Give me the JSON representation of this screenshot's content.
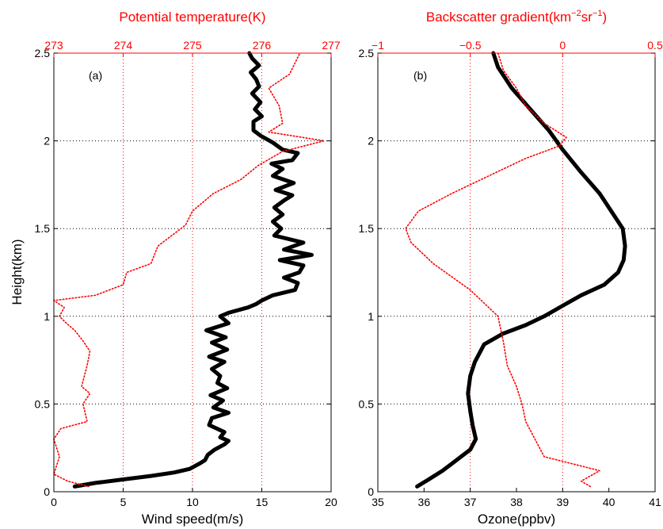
{
  "chart_data": [
    {
      "type": "line",
      "panel_label": "(a)",
      "ylabel": "Height(km)",
      "xlabel": "Wind speed(m/s)",
      "x2label": "Potential temperature(K)",
      "xlim": [
        0,
        20
      ],
      "x2lim": [
        273,
        277
      ],
      "ylim": [
        0,
        2.5
      ],
      "xticks": [
        "0",
        "5",
        "10",
        "15",
        "20"
      ],
      "x2ticks": [
        "273",
        "274",
        "275",
        "276",
        "277"
      ],
      "yticks": [
        "0",
        "0.5",
        "1",
        "1.5",
        "2",
        "2.5"
      ],
      "grid": true,
      "series": [
        {
          "axis": "bottom",
          "color": "#000000",
          "style": "solid-thick",
          "points": [
            [
              1.5,
              0.03
            ],
            [
              3.0,
              0.05
            ],
            [
              5.0,
              0.07
            ],
            [
              7.0,
              0.09
            ],
            [
              8.7,
              0.11
            ],
            [
              9.8,
              0.13
            ],
            [
              10.5,
              0.16
            ],
            [
              10.9,
              0.18
            ],
            [
              11.1,
              0.21
            ],
            [
              11.6,
              0.24
            ],
            [
              12.3,
              0.27
            ],
            [
              12.6,
              0.29
            ],
            [
              12.0,
              0.31
            ],
            [
              12.3,
              0.34
            ],
            [
              11.2,
              0.38
            ],
            [
              11.4,
              0.42
            ],
            [
              12.6,
              0.45
            ],
            [
              11.5,
              0.48
            ],
            [
              12.2,
              0.52
            ],
            [
              11.3,
              0.55
            ],
            [
              12.5,
              0.59
            ],
            [
              11.8,
              0.62
            ],
            [
              12.0,
              0.66
            ],
            [
              11.4,
              0.7
            ],
            [
              12.3,
              0.74
            ],
            [
              11.2,
              0.77
            ],
            [
              12.5,
              0.81
            ],
            [
              11.4,
              0.85
            ],
            [
              12.4,
              0.88
            ],
            [
              11.0,
              0.92
            ],
            [
              12.6,
              0.96
            ],
            [
              12.0,
              1.0
            ],
            [
              12.6,
              1.02
            ],
            [
              14.0,
              1.05
            ],
            [
              14.6,
              1.07
            ],
            [
              15.0,
              1.09
            ],
            [
              15.8,
              1.12
            ],
            [
              17.4,
              1.15
            ],
            [
              17.6,
              1.19
            ],
            [
              16.6,
              1.22
            ],
            [
              17.7,
              1.25
            ],
            [
              18.0,
              1.29
            ],
            [
              16.3,
              1.32
            ],
            [
              18.6,
              1.35
            ],
            [
              16.6,
              1.38
            ],
            [
              18.0,
              1.42
            ],
            [
              15.9,
              1.46
            ],
            [
              16.4,
              1.5
            ],
            [
              15.8,
              1.54
            ],
            [
              16.5,
              1.58
            ],
            [
              15.9,
              1.62
            ],
            [
              16.6,
              1.66
            ],
            [
              17.2,
              1.69
            ],
            [
              16.0,
              1.72
            ],
            [
              17.3,
              1.76
            ],
            [
              15.8,
              1.8
            ],
            [
              16.5,
              1.84
            ],
            [
              15.7,
              1.87
            ],
            [
              17.2,
              1.89
            ],
            [
              17.6,
              1.93
            ],
            [
              16.5,
              1.95
            ],
            [
              15.8,
              1.99
            ],
            [
              14.9,
              2.03
            ],
            [
              14.4,
              2.06
            ],
            [
              14.4,
              2.11
            ],
            [
              15.0,
              2.14
            ],
            [
              14.5,
              2.18
            ],
            [
              14.9,
              2.22
            ],
            [
              14.3,
              2.27
            ],
            [
              14.8,
              2.31
            ],
            [
              14.6,
              2.35
            ],
            [
              14.2,
              2.39
            ],
            [
              14.8,
              2.43
            ],
            [
              14.3,
              2.47
            ],
            [
              14.1,
              2.5
            ]
          ]
        },
        {
          "axis": "top",
          "color": "#ff0000",
          "style": "dotted",
          "points": [
            [
              273.5,
              0.03
            ],
            [
              273.2,
              0.06
            ],
            [
              273.0,
              0.1
            ],
            [
              273.08,
              0.2
            ],
            [
              273.0,
              0.3
            ],
            [
              273.1,
              0.36
            ],
            [
              273.48,
              0.4
            ],
            [
              273.42,
              0.5
            ],
            [
              273.52,
              0.56
            ],
            [
              273.4,
              0.6
            ],
            [
              273.48,
              0.72
            ],
            [
              273.52,
              0.8
            ],
            [
              273.42,
              0.86
            ],
            [
              273.3,
              0.92
            ],
            [
              273.18,
              0.96
            ],
            [
              273.08,
              1.0
            ],
            [
              273.15,
              1.05
            ],
            [
              273.0,
              1.09
            ],
            [
              273.6,
              1.12
            ],
            [
              274.0,
              1.18
            ],
            [
              274.05,
              1.25
            ],
            [
              274.4,
              1.3
            ],
            [
              274.5,
              1.4
            ],
            [
              274.9,
              1.52
            ],
            [
              275.0,
              1.6
            ],
            [
              275.3,
              1.7
            ],
            [
              275.7,
              1.78
            ],
            [
              275.95,
              1.86
            ],
            [
              276.3,
              1.94
            ],
            [
              276.9,
              2.0
            ],
            [
              276.1,
              2.05
            ],
            [
              276.3,
              2.1
            ],
            [
              276.25,
              2.2
            ],
            [
              276.1,
              2.3
            ],
            [
              276.4,
              2.38
            ],
            [
              276.55,
              2.5
            ]
          ]
        }
      ]
    },
    {
      "type": "line",
      "panel_label": "(b)",
      "ylabel": "",
      "xlabel": "Ozone(ppbv)",
      "x2label": "Backscatter gradient(km",
      "x2label_sup1": "−2",
      "x2label_mid": "sr",
      "x2label_sup2": "−1",
      "x2label_end": ")",
      "xlim": [
        35,
        41
      ],
      "x2lim": [
        -1,
        0.5
      ],
      "ylim": [
        0,
        2.5
      ],
      "xticks": [
        "35",
        "36",
        "37",
        "38",
        "39",
        "40",
        "41"
      ],
      "x2ticks": [
        "−1",
        "−0.5",
        "0",
        "0.5"
      ],
      "yticks": [
        "0",
        "0.5",
        "1",
        "1.5",
        "2",
        "2.5"
      ],
      "grid": true,
      "series": [
        {
          "axis": "bottom",
          "color": "#000000",
          "style": "solid-thick",
          "points": [
            [
              35.85,
              0.03
            ],
            [
              36.1,
              0.07
            ],
            [
              36.4,
              0.12
            ],
            [
              36.7,
              0.18
            ],
            [
              37.0,
              0.24
            ],
            [
              37.12,
              0.3
            ],
            [
              37.05,
              0.38
            ],
            [
              37.0,
              0.46
            ],
            [
              36.95,
              0.56
            ],
            [
              37.0,
              0.66
            ],
            [
              37.1,
              0.74
            ],
            [
              37.3,
              0.84
            ],
            [
              37.7,
              0.9
            ],
            [
              38.2,
              0.95
            ],
            [
              38.6,
              1.0
            ],
            [
              39.0,
              1.06
            ],
            [
              39.4,
              1.12
            ],
            [
              39.9,
              1.18
            ],
            [
              40.2,
              1.25
            ],
            [
              40.32,
              1.32
            ],
            [
              40.35,
              1.4
            ],
            [
              40.3,
              1.5
            ],
            [
              40.05,
              1.6
            ],
            [
              39.8,
              1.7
            ],
            [
              39.4,
              1.82
            ],
            [
              39.0,
              1.95
            ],
            [
              38.7,
              2.06
            ],
            [
              38.3,
              2.18
            ],
            [
              37.9,
              2.3
            ],
            [
              37.6,
              2.42
            ],
            [
              37.5,
              2.5
            ]
          ]
        },
        {
          "axis": "top",
          "color": "#ff0000",
          "style": "dotted",
          "points": [
            [
              0.15,
              0.03
            ],
            [
              0.1,
              0.06
            ],
            [
              0.2,
              0.12
            ],
            [
              -0.1,
              0.2
            ],
            [
              -0.15,
              0.3
            ],
            [
              -0.2,
              0.4
            ],
            [
              -0.22,
              0.5
            ],
            [
              -0.25,
              0.6
            ],
            [
              -0.3,
              0.72
            ],
            [
              -0.32,
              0.85
            ],
            [
              -0.35,
              1.0
            ],
            [
              -0.5,
              1.15
            ],
            [
              -0.7,
              1.3
            ],
            [
              -0.82,
              1.42
            ],
            [
              -0.85,
              1.5
            ],
            [
              -0.78,
              1.6
            ],
            [
              -0.6,
              1.7
            ],
            [
              -0.4,
              1.8
            ],
            [
              -0.2,
              1.9
            ],
            [
              -0.02,
              1.97
            ],
            [
              0.02,
              2.02
            ],
            [
              -0.1,
              2.1
            ],
            [
              -0.2,
              2.2
            ],
            [
              -0.25,
              2.3
            ],
            [
              -0.32,
              2.4
            ],
            [
              -0.35,
              2.5
            ]
          ]
        }
      ]
    }
  ]
}
